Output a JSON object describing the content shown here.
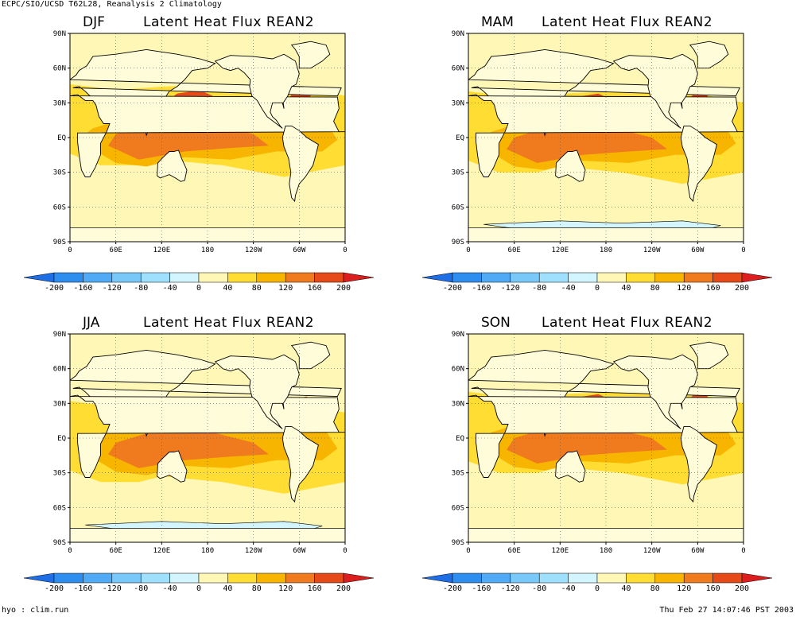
{
  "header": {
    "text": "ECPC/SIO/UCSD T62L28, Reanalysis 2 Climatology"
  },
  "footer": {
    "left": "hyo : clim.run",
    "right": "Thu Feb 27 14:07:46 PST 2003"
  },
  "panels": [
    {
      "season": "DJF",
      "title": "Latent Heat Flux  REAN2"
    },
    {
      "season": "MAM",
      "title": "Latent Heat Flux  REAN2"
    },
    {
      "season": "JJA",
      "title": "Latent Heat Flux  REAN2"
    },
    {
      "season": "SON",
      "title": "Latent Heat Flux  REAN2"
    }
  ],
  "axes": {
    "lat_ticks": [
      "90N",
      "60N",
      "30N",
      "EQ",
      "30S",
      "60S",
      "90S"
    ],
    "lon_ticks": [
      "0",
      "60E",
      "120E",
      "180",
      "120W",
      "60W",
      "0"
    ]
  },
  "colorbar": {
    "labels": [
      "-200",
      "-160",
      "-120",
      "-80",
      "-40",
      "0",
      "40",
      "80",
      "120",
      "160",
      "200"
    ],
    "colors": [
      "#1e6ee6",
      "#2e8ef0",
      "#50aaf5",
      "#78c8fa",
      "#a0e0ff",
      "#d2f5ff",
      "#fff7b5",
      "#ffdd33",
      "#f7b500",
      "#f07a1e",
      "#e64a19",
      "#dc1e1e"
    ]
  },
  "fill_colors": {
    "land": "#fffcd9",
    "c0_40": "#fff7b5",
    "c40_80": "#ffdd33",
    "c80_120": "#f7b500",
    "c120_160": "#f07a1e",
    "c160_200": "#e64a19",
    "cneg": "#d2f5ff"
  }
}
